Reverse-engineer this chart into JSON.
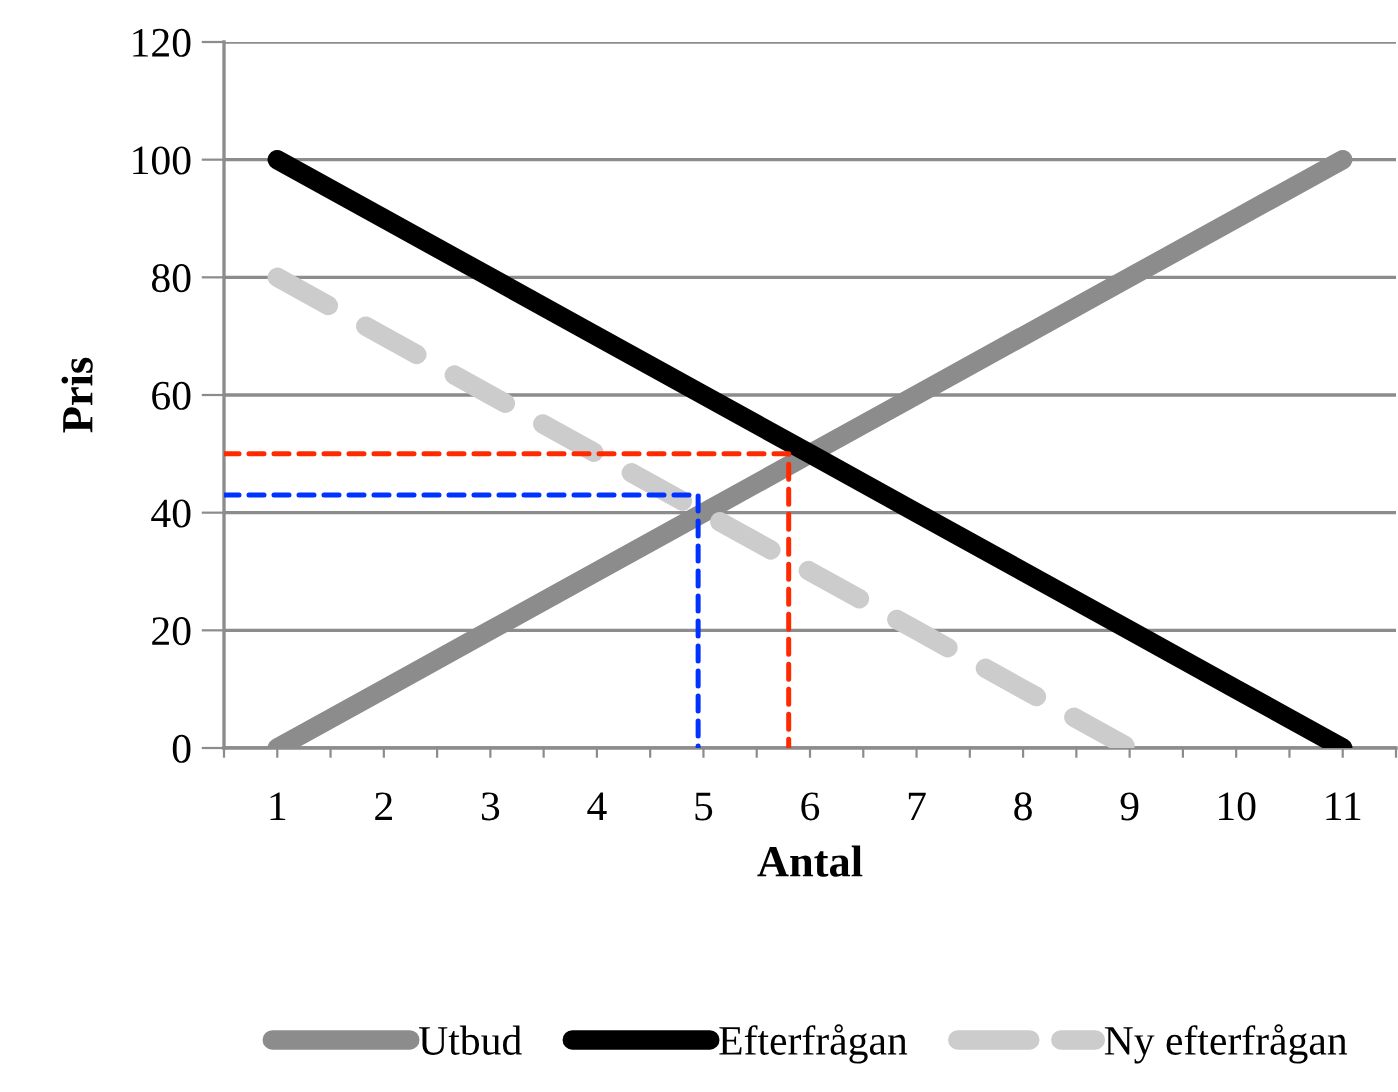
{
  "chart_data": {
    "type": "line",
    "xlabel": "Antal",
    "ylabel": "Pris",
    "x": [
      1,
      2,
      3,
      4,
      5,
      6,
      7,
      8,
      9,
      10,
      11
    ],
    "series": [
      {
        "name": "Utbud",
        "color": "#8c8c8c",
        "values": [
          0,
          10,
          20,
          30,
          40,
          50,
          60,
          70,
          80,
          90,
          100
        ]
      },
      {
        "name": "Efterfrågan",
        "color": "#000000",
        "values": [
          100,
          90,
          80,
          70,
          60,
          50,
          40,
          30,
          20,
          10,
          0
        ]
      },
      {
        "name": "Ny efterfrågan",
        "color": "#cccccc",
        "line_style": "dashed",
        "values": [
          80,
          70,
          60,
          50,
          40,
          30,
          20,
          10,
          0,
          null,
          null
        ]
      },
      {
        "color": "#ff2a00",
        "line_style": "dashed",
        "x": [
          0.5,
          5.8,
          5.8
        ],
        "values": [
          50,
          50,
          0
        ]
      },
      {
        "color": "#0033ff",
        "line_style": "dashed",
        "x": [
          0.5,
          4.95,
          4.95
        ],
        "values": [
          43,
          43,
          0
        ]
      }
    ],
    "xlim": [
      0.5,
      11.5
    ],
    "xticks": [
      {
        "value": 0.5,
        "label": null
      },
      1,
      {
        "value": 1.5,
        "label": null
      },
      2,
      {
        "value": 2.5,
        "label": null
      },
      3,
      {
        "value": 3.5,
        "label": null
      },
      4,
      {
        "value": 4.5,
        "label": null
      },
      5,
      {
        "value": 5.5,
        "label": null
      },
      6,
      {
        "value": 6.5,
        "label": null
      },
      7,
      {
        "value": 7.5,
        "label": null
      },
      8,
      {
        "value": 8.5,
        "label": null
      },
      9,
      {
        "value": 9.5,
        "label": null
      },
      10,
      {
        "value": 10.5,
        "label": null
      },
      11,
      {
        "value": 11.5,
        "label": null
      }
    ],
    "ylim": [
      0,
      120
    ],
    "yticks": [
      0,
      20,
      40,
      60,
      80,
      100,
      120
    ],
    "grid": "y",
    "legend": "bottom"
  }
}
